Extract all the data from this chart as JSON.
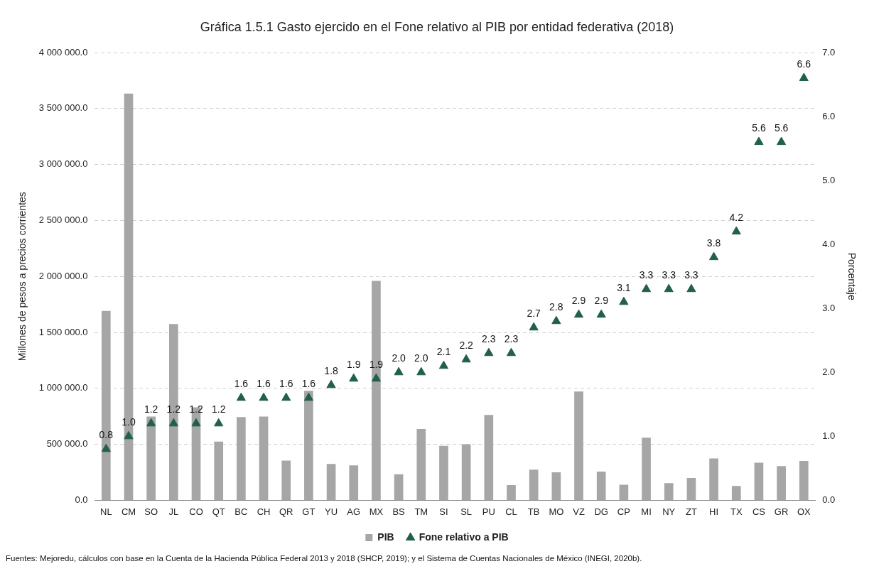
{
  "chart_data": {
    "type": "bar",
    "title": "Gráfica 1.5.1 Gasto ejercido en el Fone relativo al PIB por entidad federativa (2018)",
    "categories": [
      "NL",
      "CM",
      "SO",
      "JL",
      "CO",
      "QT",
      "BC",
      "CH",
      "QR",
      "GT",
      "YU",
      "AG",
      "MX",
      "BS",
      "TM",
      "SI",
      "SL",
      "PU",
      "CL",
      "TB",
      "MO",
      "VZ",
      "DG",
      "CP",
      "MI",
      "NY",
      "ZT",
      "HI",
      "TX",
      "CS",
      "GR",
      "OX"
    ],
    "series": [
      {
        "name": "PIB",
        "color": "#a6a6a6",
        "values": [
          1692000,
          3633000,
          748000,
          1574000,
          831000,
          525000,
          743000,
          748000,
          354000,
          978000,
          325000,
          312000,
          1960000,
          232000,
          637000,
          487000,
          501000,
          762000,
          136000,
          274000,
          250000,
          972000,
          256000,
          139000,
          559000,
          154000,
          200000,
          373000,
          128000,
          336000,
          306000,
          352000
        ]
      },
      {
        "name": "Fone relativo a PIB",
        "type": "scatter",
        "axis": "y2",
        "color": "#215f4e",
        "marker": "triangle",
        "values": [
          0.8,
          1.0,
          1.2,
          1.2,
          1.2,
          1.2,
          1.6,
          1.6,
          1.6,
          1.6,
          1.8,
          1.9,
          1.9,
          2.0,
          2.0,
          2.1,
          2.2,
          2.3,
          2.3,
          2.7,
          2.8,
          2.9,
          2.9,
          3.1,
          3.3,
          3.3,
          3.3,
          3.8,
          4.2,
          5.6,
          5.6,
          6.6
        ],
        "value_labels": [
          "0.8",
          "1.0",
          "1.2",
          "1.2",
          "1.2",
          "1.2",
          "1.6",
          "1.6",
          "1.6",
          "1.6",
          "1.8",
          "1.9",
          "1.9",
          "2.0",
          "2.0",
          "2.1",
          "2.2",
          "2.3",
          "2.3",
          "2.7",
          "2.8",
          "2.9",
          "2.9",
          "3.1",
          "3.3",
          "3.3",
          "3.3",
          "3.8",
          "4.2",
          "5.6",
          "5.6",
          "6.6"
        ]
      }
    ],
    "ylabel": "Millones de pesos a precios corrientes",
    "y2label": "Porcentaje",
    "ylim": [
      0,
      4000000
    ],
    "yticks": [
      {
        "value": 0,
        "label": "0.0"
      },
      {
        "value": 500000,
        "label": "500 000.0"
      },
      {
        "value": 1000000,
        "label": "1 000 000.0"
      },
      {
        "value": 1500000,
        "label": "1 500 000.0"
      },
      {
        "value": 2000000,
        "label": "2 000 000.0"
      },
      {
        "value": 2500000,
        "label": "2 500 000.0"
      },
      {
        "value": 3000000,
        "label": "3 000 000.0"
      },
      {
        "value": 3500000,
        "label": "3 500 000.0"
      },
      {
        "value": 4000000,
        "label": "4 000 000.0"
      }
    ],
    "y2lim": [
      0,
      7
    ],
    "y2ticks": [
      {
        "value": 0,
        "label": "0.0"
      },
      {
        "value": 1,
        "label": "1.0"
      },
      {
        "value": 2,
        "label": "2.0"
      },
      {
        "value": 3,
        "label": "3.0"
      },
      {
        "value": 4,
        "label": "4.0"
      },
      {
        "value": 5,
        "label": "5.0"
      },
      {
        "value": 6,
        "label": "6.0"
      },
      {
        "value": 7,
        "label": "7.0"
      }
    ],
    "grid": "y",
    "legend": "bottom",
    "annotations": [
      "Fuentes: Mejoredu, cálculos con base en la Cuenta de la Hacienda Pública Federal 2013 y 2018 (SHCP, 2019); y el Sistema de Cuentas Nacionales de México (INEGI, 2020b)."
    ]
  }
}
